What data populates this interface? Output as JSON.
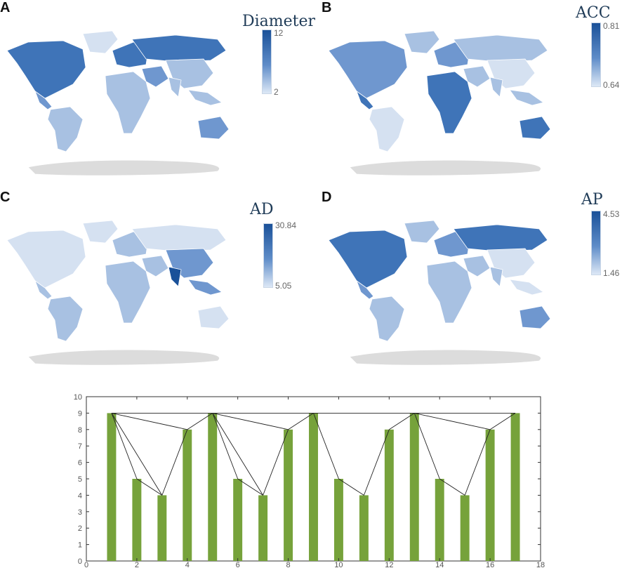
{
  "colors": {
    "dark": "#1a5199",
    "mid_dark": "#3f74b8",
    "mid": "#6f97cf",
    "light": "#a8c1e2",
    "pale": "#d5e1f1",
    "no_data": "#dcdcdc",
    "bar": "#76a23b"
  },
  "panels": [
    {
      "letter": "A",
      "legend": {
        "title": "Diameter",
        "max": "12",
        "min": "2"
      }
    },
    {
      "letter": "B",
      "legend": {
        "title": "ACC",
        "max": "0.81",
        "min": "0.64"
      }
    },
    {
      "letter": "C",
      "legend": {
        "title": "AD",
        "max": "30.84",
        "min": "5.05"
      }
    },
    {
      "letter": "D",
      "legend": {
        "title": "AP",
        "max": "4.53",
        "min": "1.46"
      }
    }
  ],
  "chart_data": {
    "type": "bar",
    "x": [
      1,
      2,
      3,
      4,
      5,
      6,
      7,
      8,
      9,
      10,
      11,
      12,
      13,
      14,
      15,
      16,
      17
    ],
    "values": [
      9,
      5,
      4,
      8,
      9,
      5,
      4,
      8,
      9,
      5,
      4,
      8,
      9,
      5,
      4,
      8,
      9
    ],
    "xlim": [
      0,
      18
    ],
    "ylim": [
      0,
      10
    ],
    "xticks": [
      "0",
      "2",
      "4",
      "6",
      "8",
      "10",
      "12",
      "14",
      "16",
      "18"
    ],
    "yticks": [
      "0",
      "1",
      "2",
      "3",
      "4",
      "5",
      "6",
      "7",
      "8",
      "9",
      "10"
    ],
    "visibility_edges": [
      [
        1,
        2
      ],
      [
        1,
        3
      ],
      [
        1,
        4
      ],
      [
        1,
        5
      ],
      [
        2,
        3
      ],
      [
        3,
        4
      ],
      [
        4,
        5
      ],
      [
        5,
        6
      ],
      [
        5,
        7
      ],
      [
        5,
        8
      ],
      [
        5,
        9
      ],
      [
        6,
        7
      ],
      [
        7,
        8
      ],
      [
        8,
        9
      ],
      [
        9,
        10
      ],
      [
        9,
        13
      ],
      [
        10,
        11
      ],
      [
        11,
        12
      ],
      [
        12,
        13
      ],
      [
        13,
        14
      ],
      [
        13,
        16
      ],
      [
        13,
        17
      ],
      [
        14,
        15
      ],
      [
        15,
        16
      ],
      [
        16,
        17
      ]
    ]
  }
}
